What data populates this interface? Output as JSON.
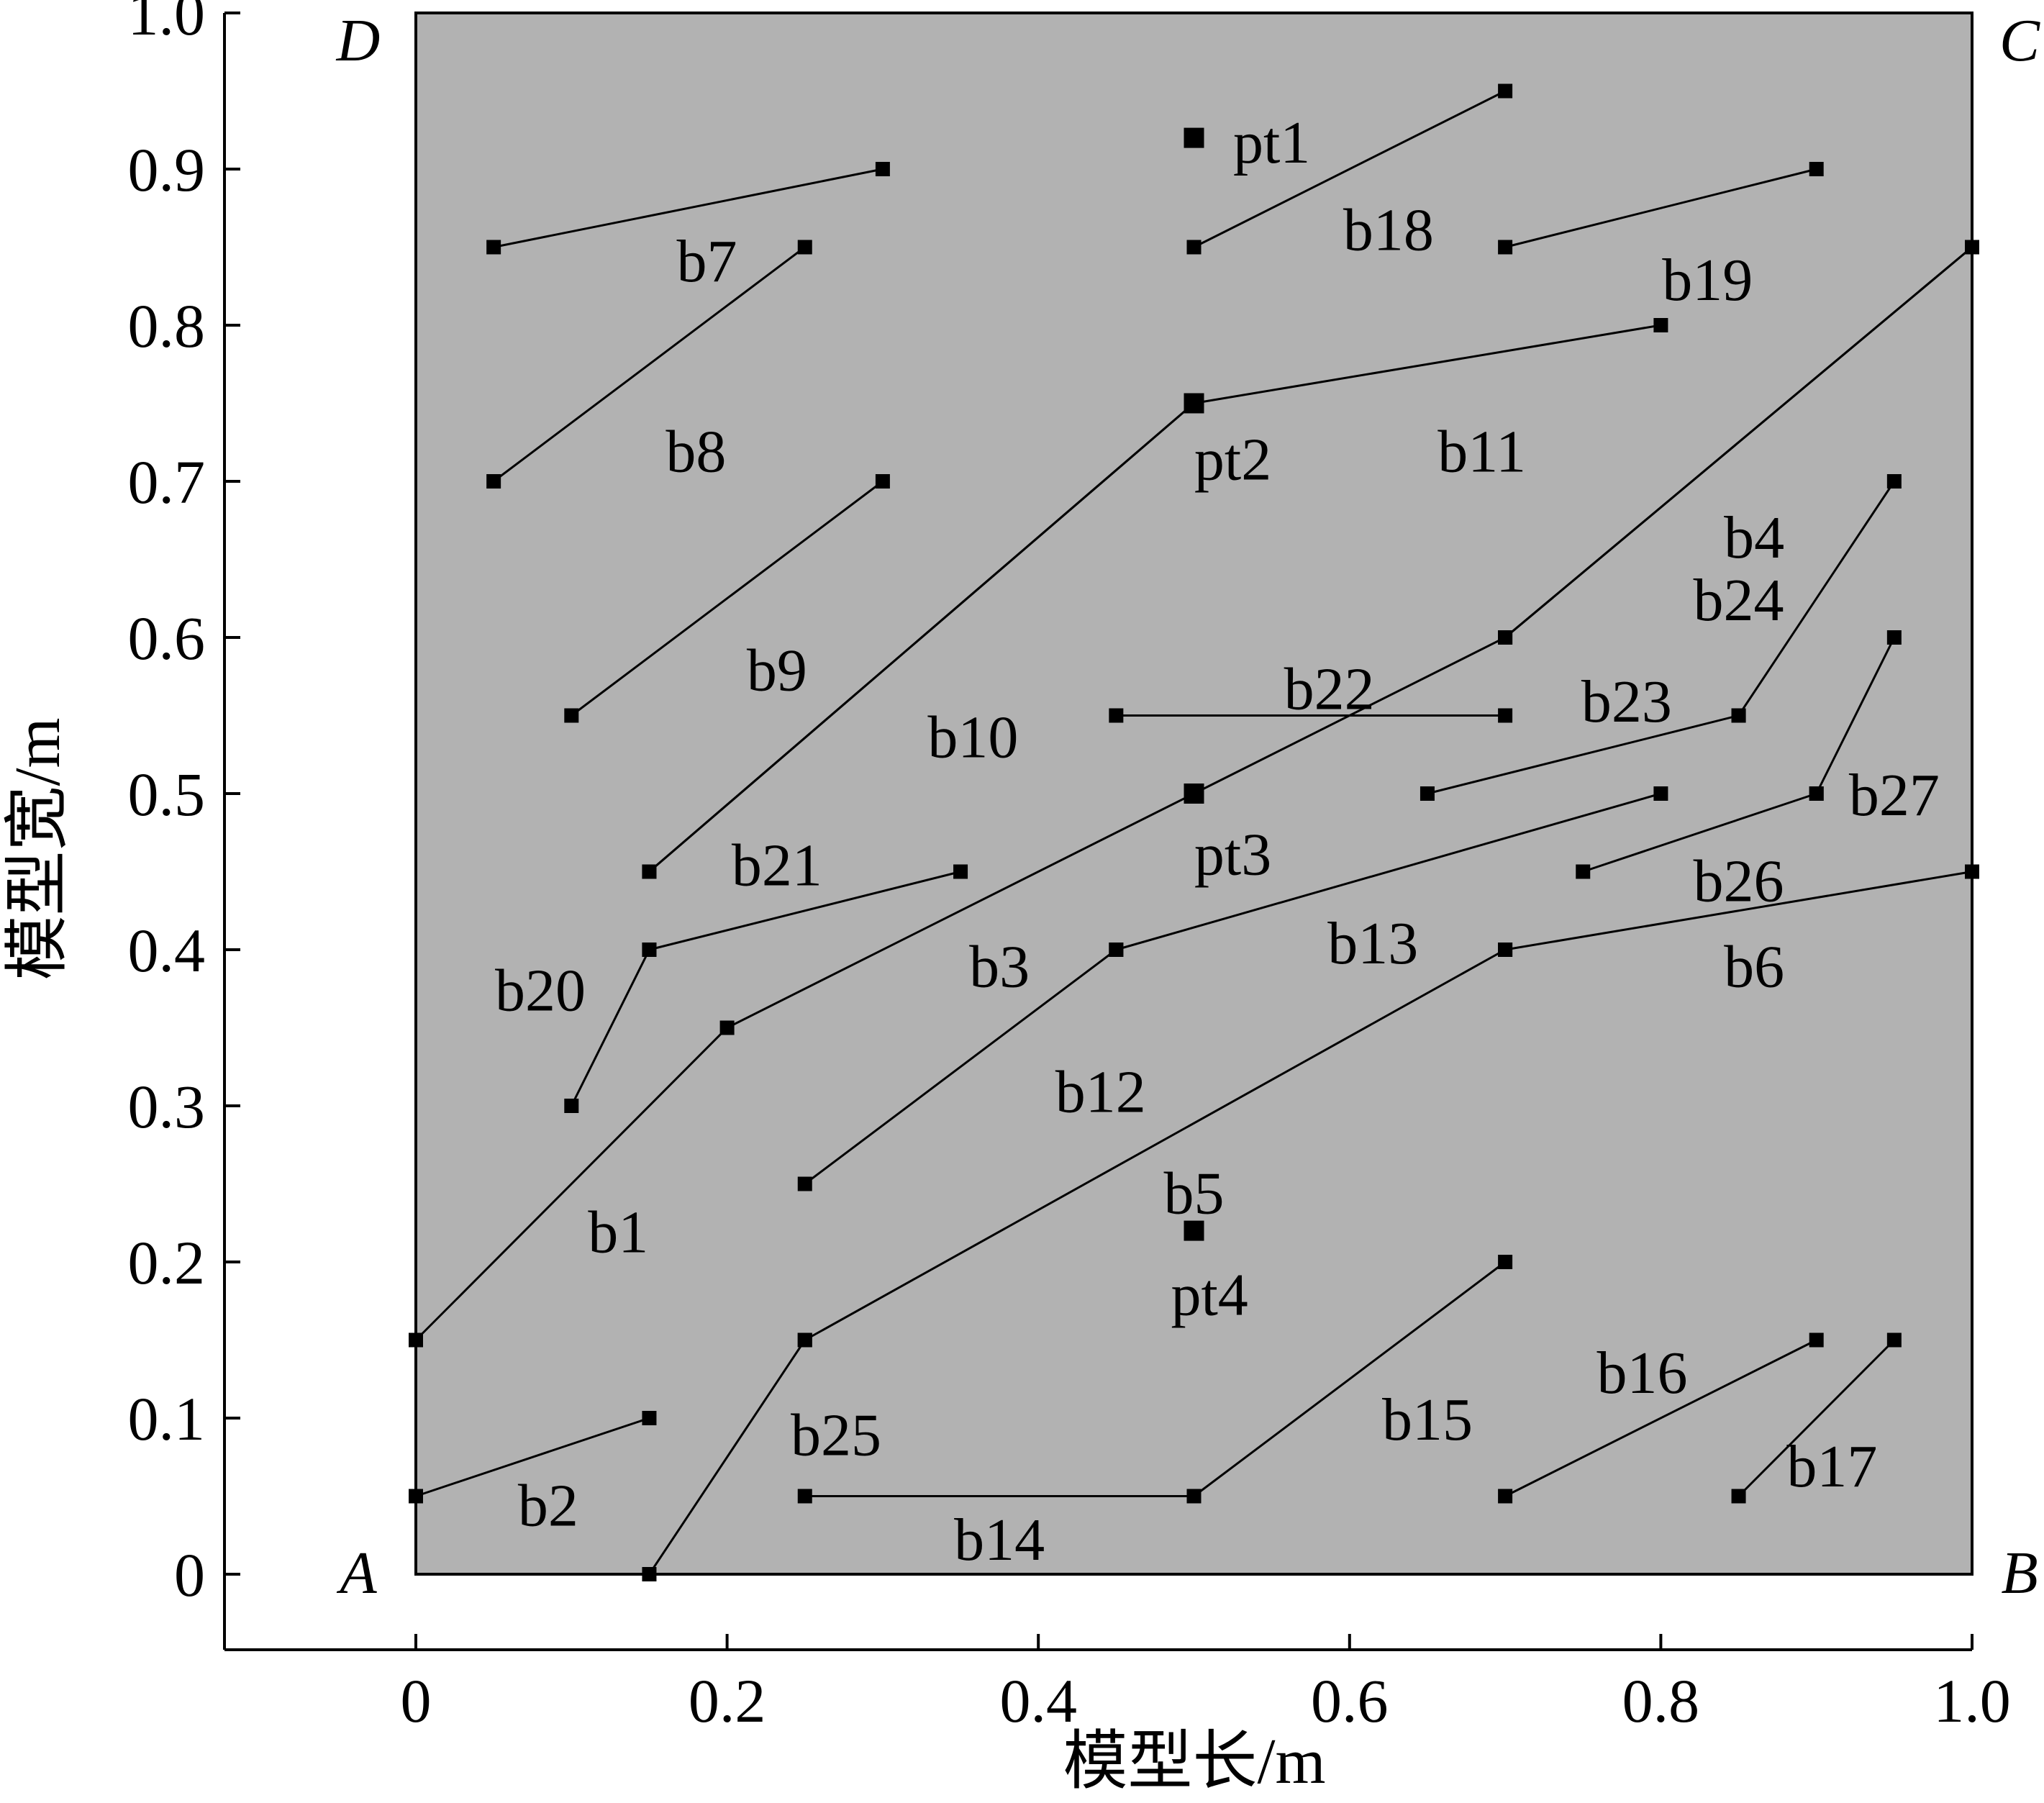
{
  "colors": {
    "background": "#ffffff",
    "model_area": "#b2b2b2",
    "line": "#000000"
  },
  "chart_data": {
    "type": "scatter",
    "xlabel": "模型长/m",
    "ylabel": "模型宽/m",
    "xlim": [
      -0.125,
      1.0
    ],
    "ylim": [
      -0.05,
      1.0
    ],
    "x_ticks": [
      "0",
      "0.2",
      "0.4",
      "0.6",
      "0.8",
      "1.0"
    ],
    "y_ticks": [
      "0",
      "0.1",
      "0.2",
      "0.3",
      "0.4",
      "0.5",
      "0.6",
      "0.7",
      "0.8",
      "0.9",
      "1.0"
    ],
    "grid": false,
    "corners": [
      {
        "name": "A",
        "x": 0,
        "y": 0
      },
      {
        "name": "B",
        "x": 1,
        "y": 0
      },
      {
        "name": "C",
        "x": 1,
        "y": 1
      },
      {
        "name": "D",
        "x": 0,
        "y": 1
      }
    ],
    "segments": [
      {
        "name": "b1",
        "points": [
          [
            0,
            0.15
          ],
          [
            0.2,
            0.35
          ],
          [
            0.5,
            0.5
          ],
          [
            0.7,
            0.6
          ],
          [
            1.0,
            0.85
          ]
        ]
      },
      {
        "name": "b2",
        "points": [
          [
            0,
            0.05
          ],
          [
            0.15,
            0.1
          ]
        ]
      },
      {
        "name": "b3",
        "points": [
          [
            0.15,
            0.45
          ],
          [
            0.5,
            0.75
          ]
        ]
      },
      {
        "name": "b4",
        "points": [
          [
            0.7,
            0.6
          ],
          [
            1.0,
            0.85
          ]
        ]
      },
      {
        "name": "b5",
        "points": [
          [
            0.25,
            0.15
          ],
          [
            0.7,
            0.4
          ]
        ]
      },
      {
        "name": "b6",
        "points": [
          [
            0.7,
            0.4
          ],
          [
            1.0,
            0.45
          ]
        ]
      },
      {
        "name": "b7",
        "points": [
          [
            0.05,
            0.85
          ],
          [
            0.3,
            0.9
          ]
        ]
      },
      {
        "name": "b8",
        "points": [
          [
            0.05,
            0.7
          ],
          [
            0.25,
            0.85
          ]
        ]
      },
      {
        "name": "b9",
        "points": [
          [
            0.1,
            0.55
          ],
          [
            0.3,
            0.7
          ]
        ]
      },
      {
        "name": "b10",
        "points": [
          [
            0.15,
            0.45
          ],
          [
            0.5,
            0.75
          ]
        ]
      },
      {
        "name": "b11",
        "points": [
          [
            0.5,
            0.75
          ],
          [
            0.8,
            0.8
          ]
        ]
      },
      {
        "name": "b12",
        "points": [
          [
            0.25,
            0.25
          ],
          [
            0.45,
            0.4
          ]
        ]
      },
      {
        "name": "b13",
        "points": [
          [
            0.45,
            0.4
          ],
          [
            0.8,
            0.5
          ]
        ]
      },
      {
        "name": "b14",
        "points": [
          [
            0.25,
            0.05
          ],
          [
            0.5,
            0.05
          ]
        ]
      },
      {
        "name": "b15",
        "points": [
          [
            0.5,
            0.05
          ],
          [
            0.7,
            0.2
          ]
        ]
      },
      {
        "name": "b16",
        "points": [
          [
            0.7,
            0.05
          ],
          [
            0.9,
            0.15
          ]
        ]
      },
      {
        "name": "b17",
        "points": [
          [
            0.85,
            0.05
          ],
          [
            0.95,
            0.15
          ]
        ]
      },
      {
        "name": "b18",
        "points": [
          [
            0.5,
            0.85
          ],
          [
            0.7,
            0.95
          ]
        ]
      },
      {
        "name": "b19",
        "points": [
          [
            0.7,
            0.85
          ],
          [
            0.9,
            0.9
          ]
        ]
      },
      {
        "name": "b20",
        "points": [
          [
            0.1,
            0.3
          ],
          [
            0.15,
            0.4
          ]
        ]
      },
      {
        "name": "b21",
        "points": [
          [
            0.15,
            0.4
          ],
          [
            0.35,
            0.45
          ]
        ]
      },
      {
        "name": "b22",
        "points": [
          [
            0.45,
            0.55
          ],
          [
            0.7,
            0.55
          ]
        ]
      },
      {
        "name": "b23",
        "points": [
          [
            0.65,
            0.5
          ],
          [
            0.85,
            0.55
          ]
        ]
      },
      {
        "name": "b24",
        "points": [
          [
            0.85,
            0.55
          ],
          [
            0.95,
            0.7
          ]
        ]
      },
      {
        "name": "b25",
        "points": [
          [
            0.15,
            0
          ],
          [
            0.25,
            0.15
          ]
        ]
      },
      {
        "name": "b26",
        "points": [
          [
            0.75,
            0.45
          ],
          [
            0.9,
            0.5
          ]
        ]
      },
      {
        "name": "b27",
        "points": [
          [
            0.9,
            0.5
          ],
          [
            0.95,
            0.6
          ]
        ]
      }
    ],
    "points": [
      {
        "name": "pt1",
        "x": 0.5,
        "y": 0.92
      },
      {
        "name": "pt2",
        "x": 0.5,
        "y": 0.75
      },
      {
        "name": "pt3",
        "x": 0.5,
        "y": 0.5
      },
      {
        "name": "pt4",
        "x": 0.5,
        "y": 0.22
      }
    ],
    "segment_labels": [
      {
        "text": "b1",
        "x": 0.13,
        "y": 0.22
      },
      {
        "text": "b2",
        "x": 0.085,
        "y": 0.045
      },
      {
        "text": "b3",
        "x": 0.375,
        "y": 0.39
      },
      {
        "text": "b4",
        "x": 0.86,
        "y": 0.665
      },
      {
        "text": "b5",
        "x": 0.5,
        "y": 0.245
      },
      {
        "text": "b6",
        "x": 0.86,
        "y": 0.39
      },
      {
        "text": "b7",
        "x": 0.187,
        "y": 0.842
      },
      {
        "text": "b8",
        "x": 0.18,
        "y": 0.72
      },
      {
        "text": "b9",
        "x": 0.232,
        "y": 0.58
      },
      {
        "text": "b10",
        "x": 0.358,
        "y": 0.537
      },
      {
        "text": "b11",
        "x": 0.685,
        "y": 0.72
      },
      {
        "text": "b12",
        "x": 0.44,
        "y": 0.31
      },
      {
        "text": "b13",
        "x": 0.615,
        "y": 0.405
      },
      {
        "text": "b14",
        "x": 0.375,
        "y": 0.023
      },
      {
        "text": "b15",
        "x": 0.65,
        "y": 0.1
      },
      {
        "text": "b16",
        "x": 0.788,
        "y": 0.13
      },
      {
        "text": "b17",
        "x": 0.91,
        "y": 0.07
      },
      {
        "text": "b18",
        "x": 0.625,
        "y": 0.862
      },
      {
        "text": "b19",
        "x": 0.83,
        "y": 0.83
      },
      {
        "text": "b20",
        "x": 0.08,
        "y": 0.375
      },
      {
        "text": "b21",
        "x": 0.232,
        "y": 0.455
      },
      {
        "text": "b22",
        "x": 0.587,
        "y": 0.568
      },
      {
        "text": "b23",
        "x": 0.778,
        "y": 0.56
      },
      {
        "text": "b24",
        "x": 0.85,
        "y": 0.625
      },
      {
        "text": "b25",
        "x": 0.27,
        "y": 0.09
      },
      {
        "text": "b26",
        "x": 0.85,
        "y": 0.445
      },
      {
        "text": "b27",
        "x": 0.95,
        "y": 0.5
      }
    ],
    "point_labels": [
      {
        "text": "pt1",
        "x": 0.55,
        "y": 0.918
      },
      {
        "text": "pt2",
        "x": 0.525,
        "y": 0.715
      },
      {
        "text": "pt3",
        "x": 0.525,
        "y": 0.462
      },
      {
        "text": "pt4",
        "x": 0.51,
        "y": 0.18
      }
    ]
  }
}
